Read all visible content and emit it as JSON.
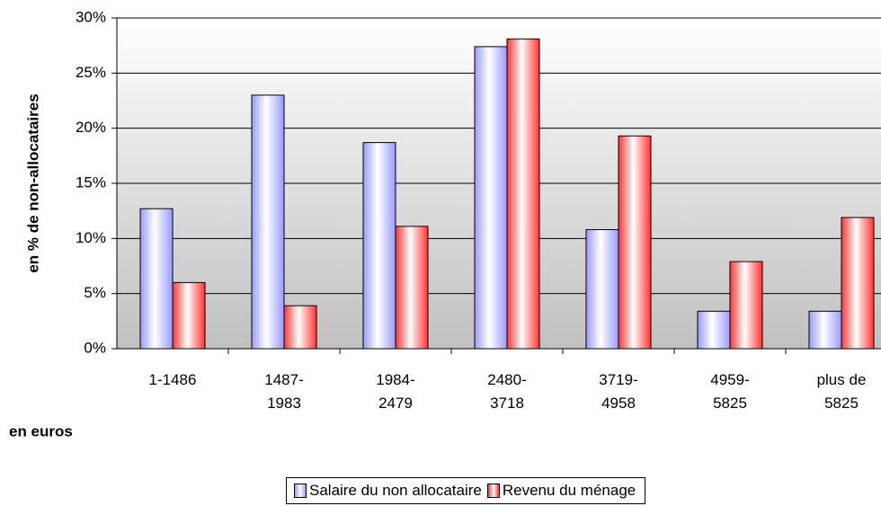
{
  "chart_data": {
    "type": "bar",
    "y_label": "en % de non-allocataires",
    "x_label": "en euros",
    "categories": [
      "1-1486",
      "1487-\n1983",
      "1984-\n2479",
      "2480-\n3718",
      "3719-\n4958",
      "4959-\n5825",
      "plus de\n5825"
    ],
    "series": [
      {
        "name": "Salaire du non allocataire",
        "color": "#9999ff",
        "values": [
          12.7,
          23.0,
          18.7,
          27.4,
          10.8,
          3.4,
          3.4
        ]
      },
      {
        "name": "Revenu du ménage",
        "color": "#ff3333",
        "values": [
          6.0,
          3.9,
          11.1,
          28.1,
          19.3,
          7.9,
          11.9
        ]
      }
    ],
    "ylim": [
      0,
      30
    ],
    "yticks": [
      {
        "value": 0,
        "label": "0%"
      },
      {
        "value": 5,
        "label": "5%"
      },
      {
        "value": 10,
        "label": "10%"
      },
      {
        "value": 15,
        "label": "15%"
      },
      {
        "value": 20,
        "label": "20%"
      },
      {
        "value": 25,
        "label": "25%"
      },
      {
        "value": 30,
        "label": "30%"
      }
    ],
    "grid": true
  }
}
